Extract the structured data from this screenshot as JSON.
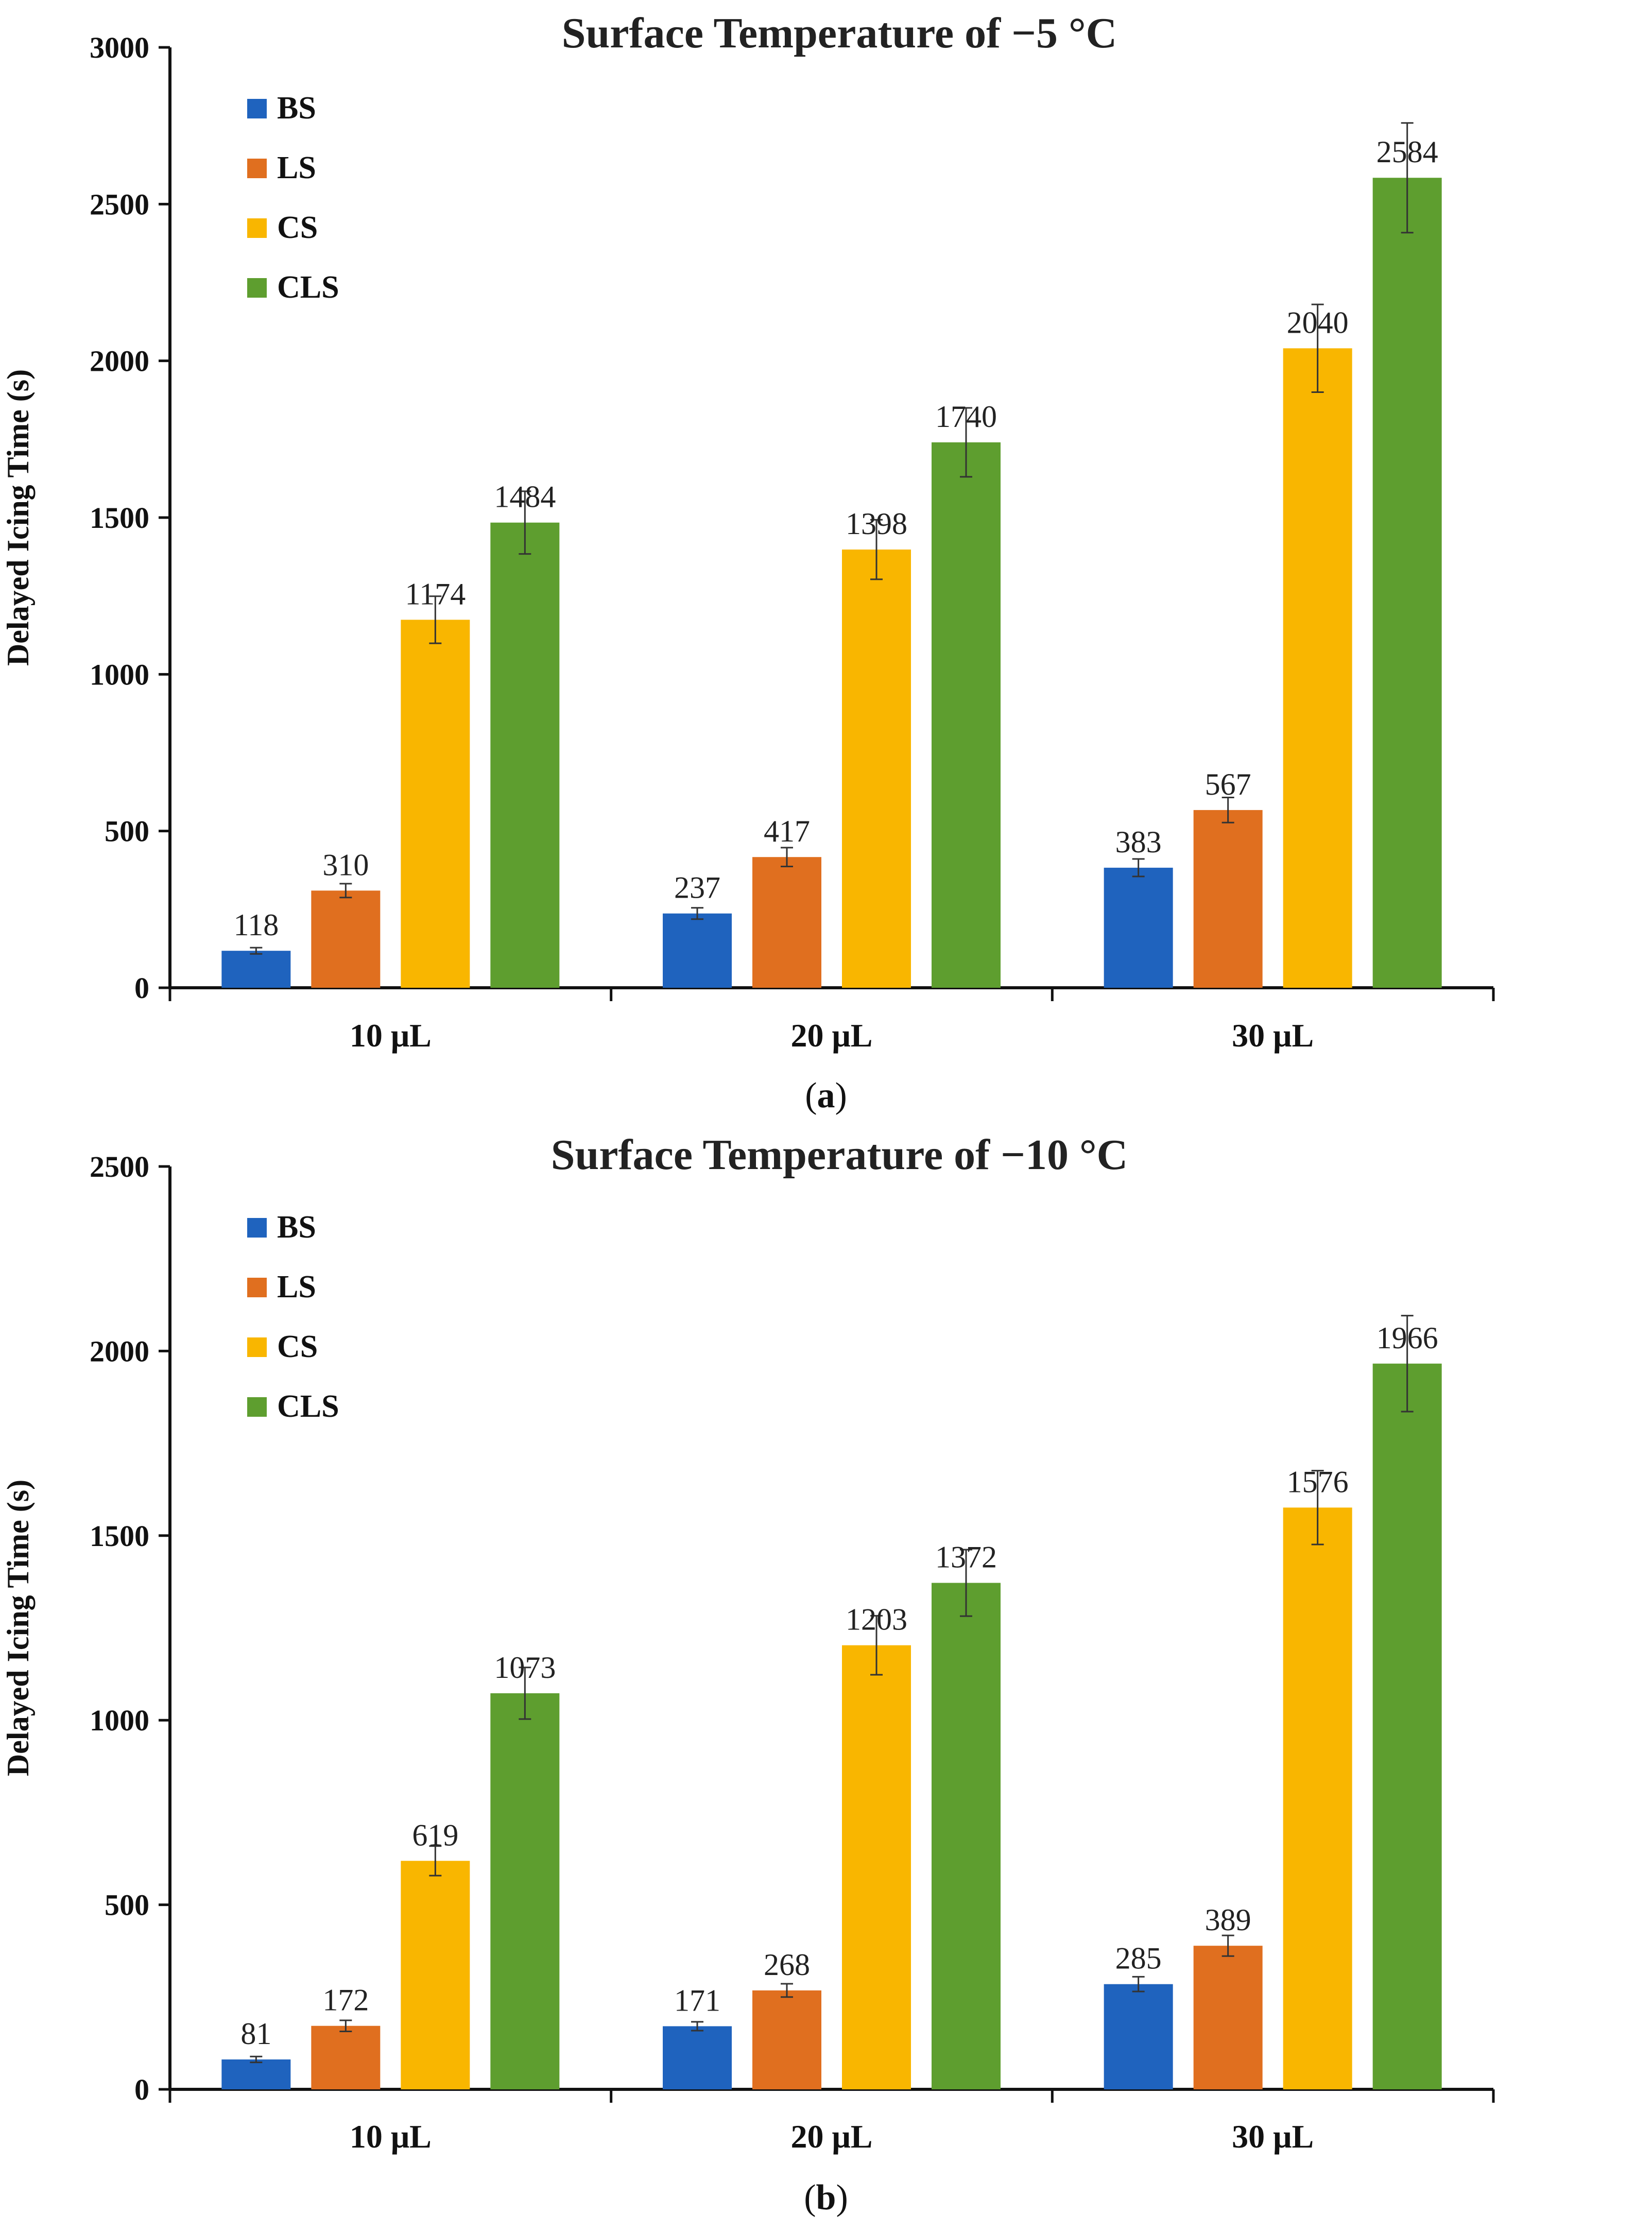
{
  "chart_data": [
    {
      "type": "bar",
      "panel": "a",
      "title": "Surface Temperature of −5 °C",
      "xlabel": "",
      "ylabel": "Delayed Icing Time (s)",
      "ylim": [
        0,
        3000
      ],
      "yticks": [
        0,
        500,
        1000,
        1500,
        2000,
        2500,
        3000
      ],
      "categories": [
        "10 μL",
        "20 μL",
        "30 μL"
      ],
      "legend_position": "top-left",
      "series": [
        {
          "name": "BS",
          "color": "#1F63BE",
          "values": [
            118,
            237,
            383
          ],
          "errors": [
            10,
            18,
            28
          ]
        },
        {
          "name": "LS",
          "color": "#E06F1F",
          "values": [
            310,
            417,
            567
          ],
          "errors": [
            22,
            30,
            40
          ]
        },
        {
          "name": "CS",
          "color": "#F9B600",
          "values": [
            1174,
            1398,
            2040
          ],
          "errors": [
            75,
            95,
            140
          ]
        },
        {
          "name": "CLS",
          "color": "#5E9E2F",
          "values": [
            1484,
            1740,
            2584
          ],
          "errors": [
            100,
            110,
            175
          ]
        }
      ]
    },
    {
      "type": "bar",
      "panel": "b",
      "title": "Surface Temperature of −10 °C",
      "xlabel": "",
      "ylabel": "Delayed Icing Time (s)",
      "ylim": [
        0,
        2500
      ],
      "yticks": [
        0,
        500,
        1000,
        1500,
        2000,
        2500
      ],
      "categories": [
        "10 μL",
        "20 μL",
        "30 μL"
      ],
      "legend_position": "top-left",
      "series": [
        {
          "name": "BS",
          "color": "#1F63BE",
          "values": [
            81,
            171,
            285
          ],
          "errors": [
            8,
            12,
            20
          ]
        },
        {
          "name": "LS",
          "color": "#E06F1F",
          "values": [
            172,
            268,
            389
          ],
          "errors": [
            15,
            18,
            28
          ]
        },
        {
          "name": "CS",
          "color": "#F9B600",
          "values": [
            619,
            1203,
            1576
          ],
          "errors": [
            40,
            80,
            100
          ]
        },
        {
          "name": "CLS",
          "color": "#5E9E2F",
          "values": [
            1073,
            1372,
            1966
          ],
          "errors": [
            70,
            90,
            130
          ]
        }
      ]
    }
  ],
  "panel_labels": [
    "a",
    "b"
  ]
}
